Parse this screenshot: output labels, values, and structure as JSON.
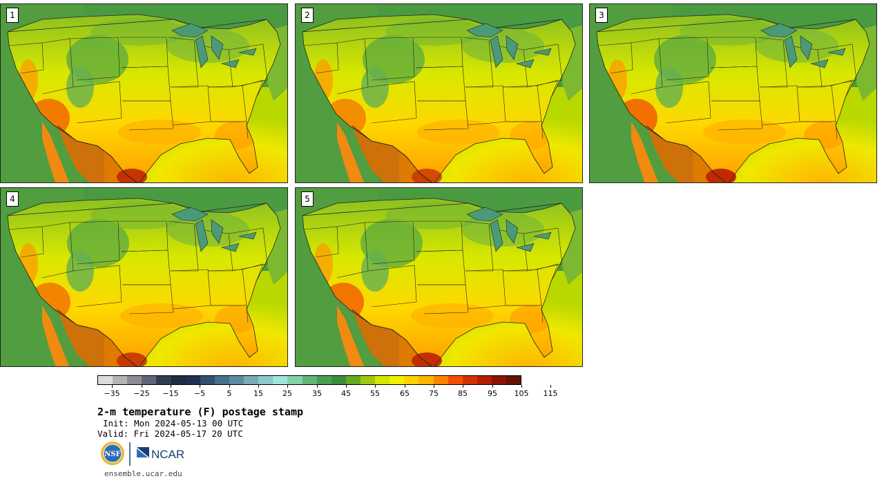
{
  "panels": [
    {
      "label": "1"
    },
    {
      "label": "2"
    },
    {
      "label": "3"
    },
    {
      "label": "4"
    },
    {
      "label": "5"
    }
  ],
  "colorbar": {
    "colors": [
      "#dcdcdc",
      "#b4b4b4",
      "#8c8c96",
      "#646478",
      "#323c50",
      "#1e2d41",
      "#1e3250",
      "#32506e",
      "#46708c",
      "#5a8ca0",
      "#78aab4",
      "#8cc8c8",
      "#a0e6dc",
      "#82d2aa",
      "#64b478",
      "#46a050",
      "#3c8c3c",
      "#64aa1e",
      "#a0c814",
      "#d2e600",
      "#f0f000",
      "#ffd200",
      "#ffb400",
      "#ff8200",
      "#f05000",
      "#d23200",
      "#b41e00",
      "#8c1400",
      "#641400"
    ],
    "tick_values": [
      "-35",
      "-25",
      "-15",
      "-5",
      "5",
      "15",
      "25",
      "35",
      "45",
      "55",
      "65",
      "75",
      "85",
      "95",
      "105",
      "115"
    ],
    "min": -40,
    "max": 120
  },
  "title": "2-m temperature (F) postage stamp",
  "init_text": "Init: Mon 2024-05-13 00 UTC",
  "valid_text": "Valid: Fri 2024-05-17 20 UTC",
  "logos": {
    "nsf": "NSF",
    "ncar": "NCAR"
  },
  "website": "ensemble.ucar.edu"
}
